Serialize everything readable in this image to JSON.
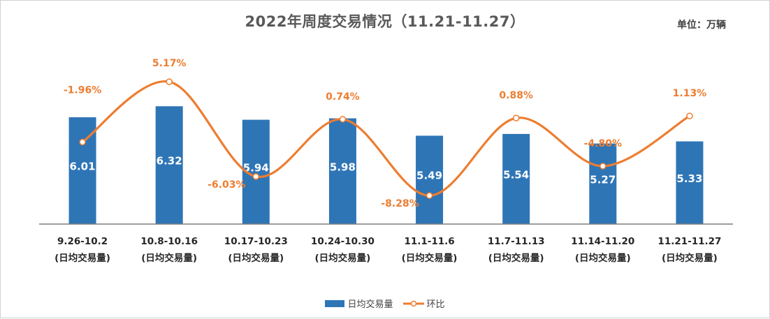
{
  "chart_data": {
    "type": "bar",
    "title": "2022年周度交易情况（11.21-11.27）",
    "unit_label": "单位：万辆",
    "categories": [
      [
        "9.26-10.2",
        "(日均交易量)"
      ],
      [
        "10.8-10.16",
        "(日均交易量)"
      ],
      [
        "10.17-10.23",
        "(日均交易量)"
      ],
      [
        "10.24-10.30",
        "(日均交易量)"
      ],
      [
        "11.1-11.6",
        "(日均交易量)"
      ],
      [
        "11.7-11.13",
        "(日均交易量)"
      ],
      [
        "11.14-11.20",
        "(日均交易量)"
      ],
      [
        "11.21-11.27",
        "(日均交易量)"
      ]
    ],
    "series": [
      {
        "name": "日均交易量",
        "type": "bar",
        "color": "#2E75B6",
        "values": [
          6.01,
          6.32,
          5.94,
          5.98,
          5.49,
          5.54,
          5.27,
          5.33
        ],
        "labels": [
          "6.01",
          "6.32",
          "5.94",
          "5.98",
          "5.49",
          "5.54",
          "5.27",
          "5.33"
        ]
      },
      {
        "name": "环比",
        "type": "line",
        "smooth": true,
        "color": "#ED7D31",
        "values": [
          -1.96,
          5.17,
          -6.03,
          0.74,
          -8.28,
          0.88,
          -4.8,
          1.13
        ],
        "labels": [
          "-1.96%",
          "5.17%",
          "-6.03%",
          "0.74%",
          "-8.28%",
          "0.88%",
          "-4.80%",
          "1.13%"
        ],
        "label_positions": [
          "above",
          "above",
          "below",
          "above",
          "below",
          "above",
          "above",
          "above"
        ]
      }
    ],
    "bar_ylim": [
      3,
      6.6
    ],
    "line_ylim": [
      -10,
      6.5
    ],
    "legend_position": "bottom",
    "grid": false
  }
}
